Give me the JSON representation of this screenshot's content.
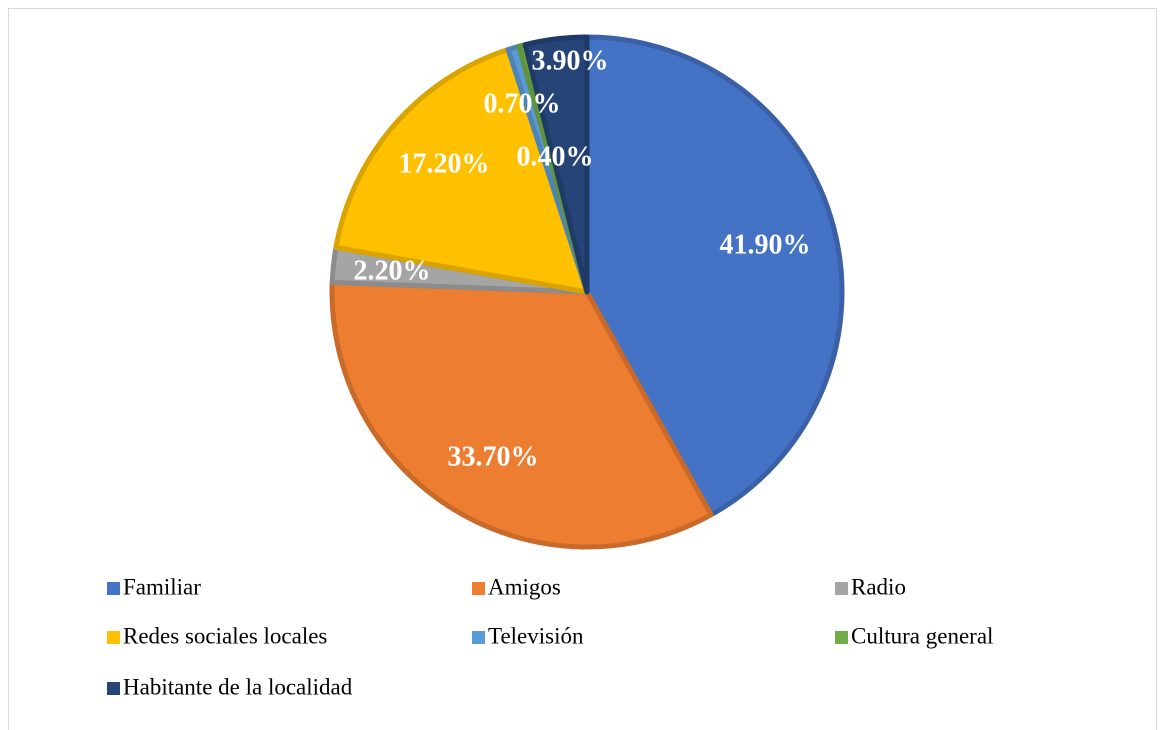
{
  "chart_data": {
    "type": "pie",
    "categories": [
      "Familiar",
      "Amigos",
      "Radio",
      "Redes sociales locales",
      "Televisión",
      "Cultura general",
      "Habitante de la localidad"
    ],
    "values": [
      41.9,
      33.7,
      2.2,
      17.2,
      0.7,
      0.4,
      3.9
    ],
    "value_labels": [
      "41.90%",
      "33.70%",
      "2.20%",
      "17.20%",
      "0.70%",
      "0.40%",
      "3.90%"
    ],
    "colors": [
      "#4472c4",
      "#ed7d31",
      "#a5a5a5",
      "#ffc000",
      "#5b9bd5",
      "#70ad47",
      "#264478"
    ],
    "legend": "bottom"
  }
}
